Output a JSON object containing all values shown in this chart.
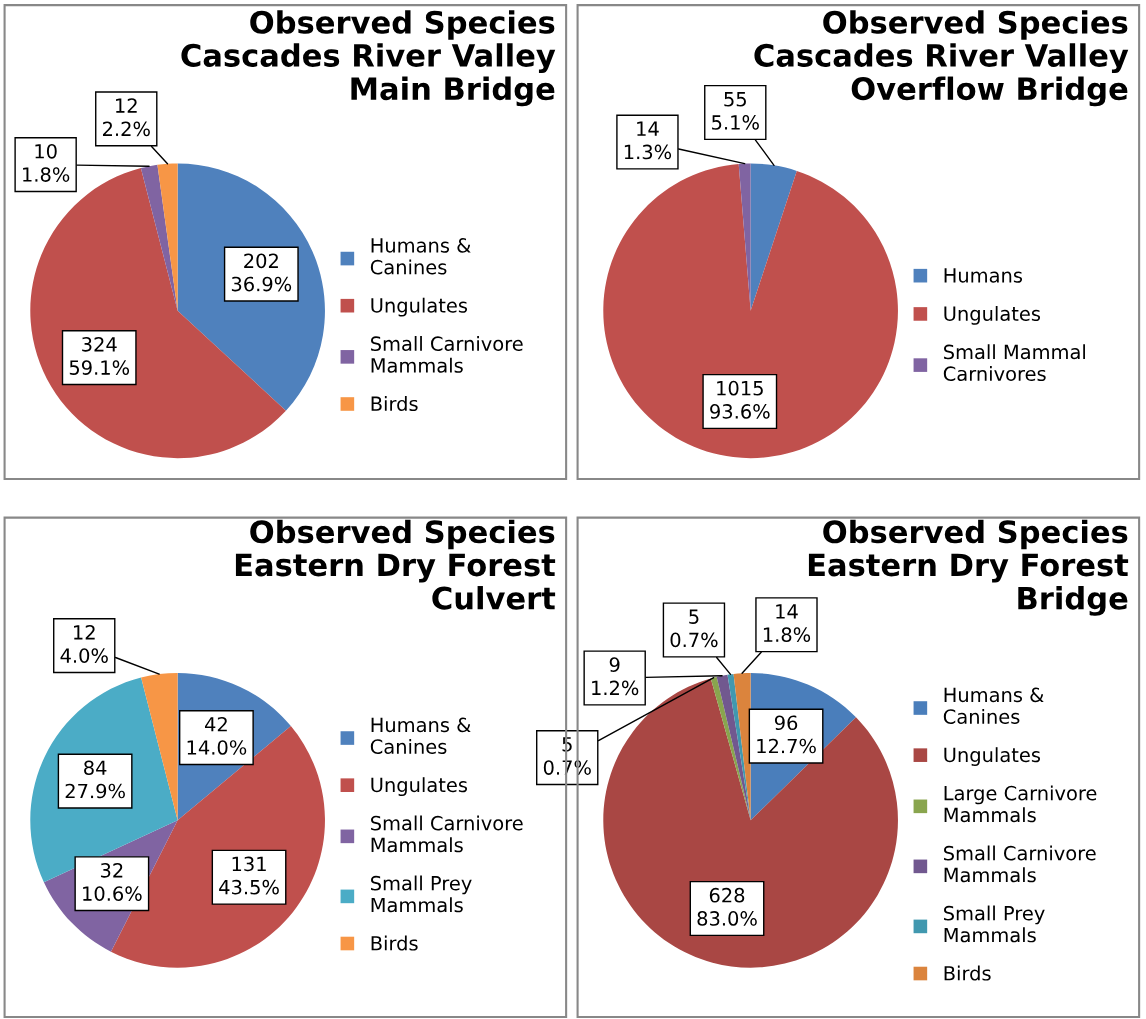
{
  "chart_data": [
    {
      "type": "pie",
      "title": "Observed Species\nCascades River Valley\nMain Bridge",
      "categories": [
        "Humans &\nCanines",
        "Ungulates",
        "Small Carnivore\nMammals",
        "Birds"
      ],
      "values": [
        202,
        324,
        10,
        12
      ],
      "colors": [
        "#4f81bd",
        "#c0504d",
        "#8064a2",
        "#f79646"
      ],
      "value_labels": [
        "202\n36.9%",
        "324\n59.1%",
        "10\n1.8%",
        "12\n2.2%"
      ],
      "legend": "right"
    },
    {
      "type": "pie",
      "title": "Observed Species\nCascades River Valley\nOverflow Bridge",
      "categories": [
        "Humans",
        "Ungulates",
        "Small Mammal\nCarnivores"
      ],
      "values": [
        55,
        1015,
        14
      ],
      "colors": [
        "#4f81bd",
        "#c0504d",
        "#8064a2"
      ],
      "value_labels": [
        "55\n5.1%",
        "1015\n93.6%",
        "14\n1.3%"
      ],
      "legend": "right"
    },
    {
      "type": "pie",
      "title": "Observed Species\nEastern Dry Forest\nCulvert",
      "categories": [
        "Humans &\nCanines",
        "Ungulates",
        "Small Carnivore\nMammals",
        "Small Prey\nMammals",
        "Birds"
      ],
      "values": [
        42,
        131,
        32,
        84,
        12
      ],
      "colors": [
        "#4f81bd",
        "#c0504d",
        "#8064a2",
        "#4bacc6",
        "#f79646"
      ],
      "value_labels": [
        "42\n14.0%",
        "131\n43.5%",
        "32\n10.6%",
        "84\n27.9%",
        "12\n4.0%"
      ],
      "legend": "right"
    },
    {
      "type": "pie",
      "title": "Observed Species\nEastern Dry Forest\nBridge",
      "categories": [
        "Humans &\nCanines",
        "Ungulates",
        "Large Carnivore\nMammals",
        "Small Carnivore\nMammals",
        "Small Prey\nMammals",
        "Birds"
      ],
      "values": [
        96,
        628,
        5,
        9,
        5,
        14
      ],
      "colors": [
        "#4a7ebb",
        "#a94744",
        "#89a54e",
        "#71588f",
        "#4198af",
        "#db843d"
      ],
      "value_labels": [
        "96\n12.7%",
        "628\n83.0%",
        "5\n0.7%",
        "9\n1.2%",
        "5\n0.7%",
        "14\n1.8%"
      ],
      "legend": "right"
    }
  ]
}
